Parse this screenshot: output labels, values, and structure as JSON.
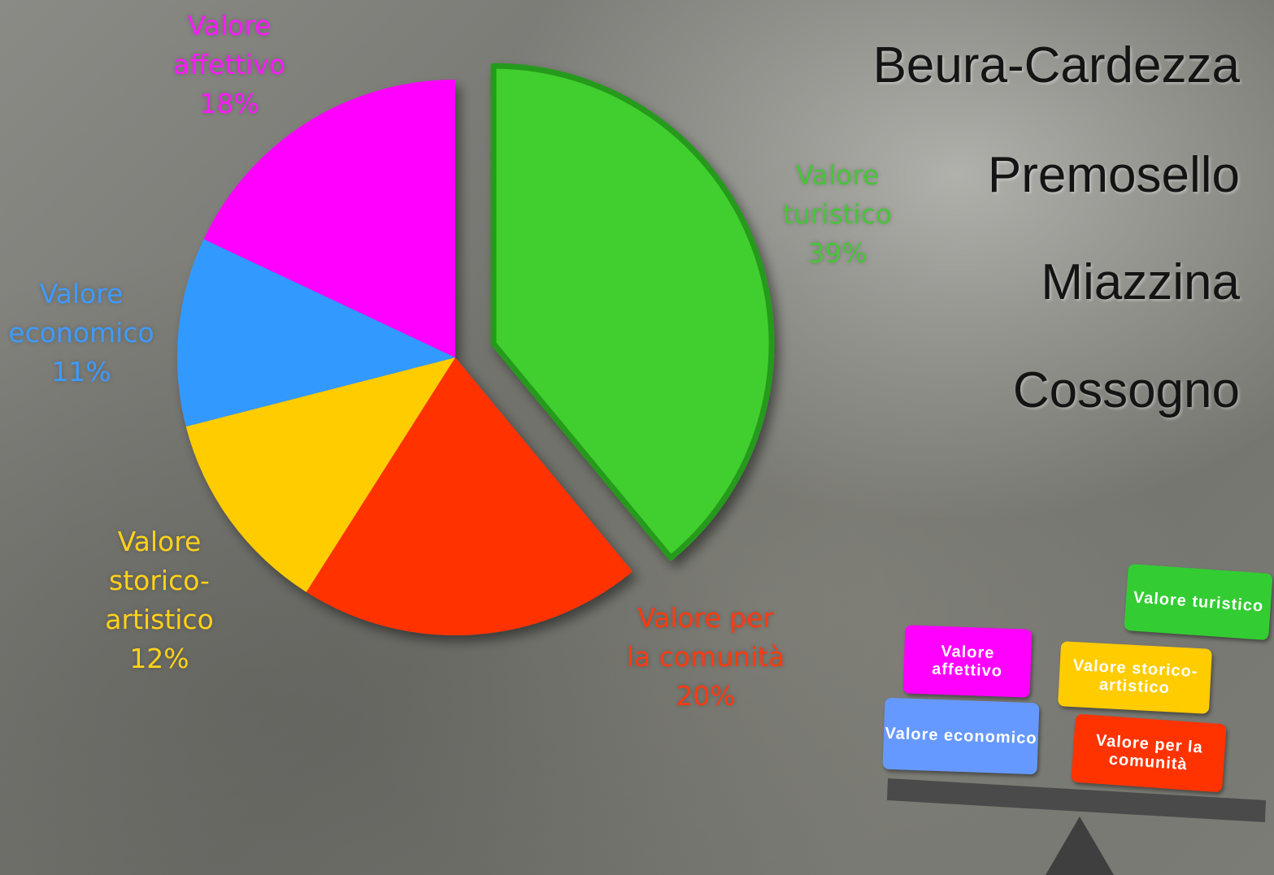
{
  "chart_data": {
    "type": "pie",
    "categories": [
      "Valore turistico",
      "Valore per la comunità",
      "Valore storico-artistico",
      "Valore economico",
      "Valore affettivo"
    ],
    "values": [
      39,
      20,
      12,
      11,
      18
    ],
    "value_labels": [
      "39%",
      "20%",
      "12%",
      "11%",
      "18%"
    ],
    "colors": [
      "#3fcf2f",
      "#ff3300",
      "#ffcc00",
      "#3399ff",
      "#ff00ff"
    ]
  },
  "towns": [
    "Beura-Cardezza",
    "Premosello",
    "Miazzina",
    "Cossogno"
  ],
  "balance": [
    "Valore turistico",
    "Valore affettivo",
    "Valore storico-artistico",
    "Valore economico",
    "Valore per la comunità"
  ]
}
